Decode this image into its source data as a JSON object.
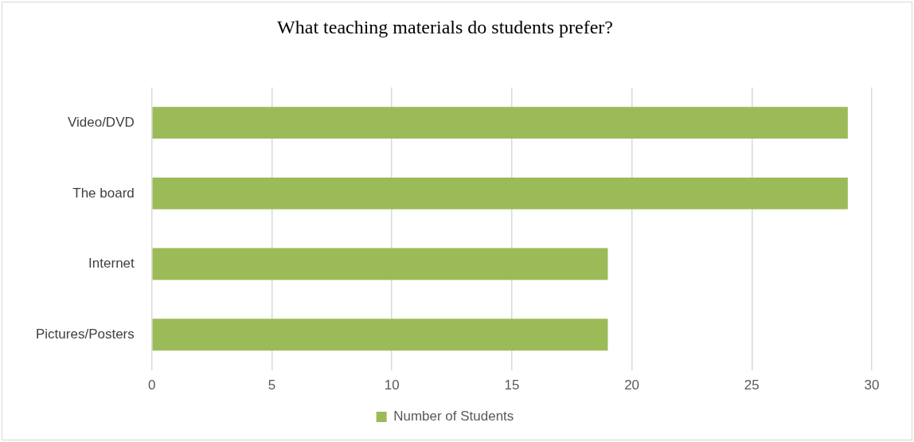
{
  "chart_data": {
    "type": "bar",
    "orientation": "horizontal",
    "title": "What teaching materials do students prefer?",
    "categories": [
      "Video/DVD",
      "The board",
      "Internet",
      "Pictures/Posters"
    ],
    "series": [
      {
        "name": "Number of Students",
        "color": "#9bbb59",
        "values": [
          29,
          29,
          19,
          19
        ]
      }
    ],
    "xlim": [
      0,
      30
    ],
    "xticks": [
      0,
      5,
      10,
      15,
      20,
      25,
      30
    ],
    "grid": "x",
    "legend": "bottom"
  }
}
